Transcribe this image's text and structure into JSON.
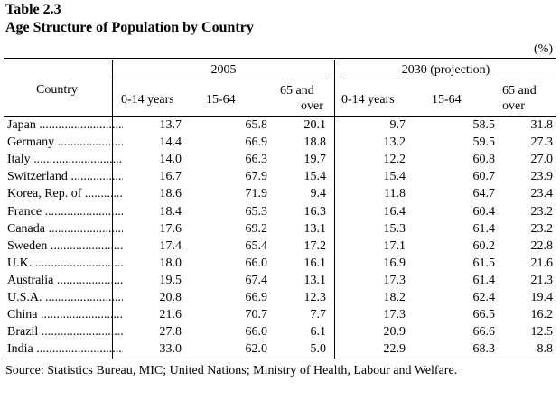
{
  "table": {
    "number": "Table 2.3",
    "title": "Age Structure of Population by Country",
    "unit": "(%)",
    "country_header": "Country",
    "group_2005": "2005",
    "group_2030": "2030 (projection)",
    "col_0_14": "0-14 years",
    "col_15_64": "15-64",
    "col_65_line1": "65 and",
    "col_65_line2": "over",
    "rows": [
      {
        "country": "Japan",
        "v": [
          "13.7",
          "65.8",
          "20.1",
          "9.7",
          "58.5",
          "31.8"
        ]
      },
      {
        "country": "Germany",
        "v": [
          "14.4",
          "66.9",
          "18.8",
          "13.2",
          "59.5",
          "27.3"
        ]
      },
      {
        "country": "Italy",
        "v": [
          "14.0",
          "66.3",
          "19.7",
          "12.2",
          "60.8",
          "27.0"
        ]
      },
      {
        "country": "Switzerland",
        "v": [
          "16.7",
          "67.9",
          "15.4",
          "15.4",
          "60.7",
          "23.9"
        ]
      },
      {
        "country": "Korea, Rep. of",
        "v": [
          "18.6",
          "71.9",
          "9.4",
          "11.8",
          "64.7",
          "23.4"
        ]
      },
      {
        "country": "France",
        "v": [
          "18.4",
          "65.3",
          "16.3",
          "16.4",
          "60.4",
          "23.2"
        ]
      },
      {
        "country": "Canada",
        "v": [
          "17.6",
          "69.2",
          "13.1",
          "15.3",
          "61.4",
          "23.2"
        ]
      },
      {
        "country": "Sweden",
        "v": [
          "17.4",
          "65.4",
          "17.2",
          "17.1",
          "60.2",
          "22.8"
        ]
      },
      {
        "country": "U.K.",
        "v": [
          "18.0",
          "66.0",
          "16.1",
          "16.9",
          "61.5",
          "21.6"
        ]
      },
      {
        "country": "Australia",
        "v": [
          "19.5",
          "67.4",
          "13.1",
          "17.3",
          "61.4",
          "21.3"
        ]
      },
      {
        "country": "U.S.A.",
        "v": [
          "20.8",
          "66.9",
          "12.3",
          "18.2",
          "62.4",
          "19.4"
        ]
      },
      {
        "country": "China",
        "v": [
          "21.6",
          "70.7",
          "7.7",
          "17.3",
          "66.5",
          "16.2"
        ]
      },
      {
        "country": "Brazil",
        "v": [
          "27.8",
          "66.0",
          "6.1",
          "20.9",
          "66.6",
          "12.5"
        ]
      },
      {
        "country": "India",
        "v": [
          "33.0",
          "62.0",
          "5.0",
          "22.9",
          "68.3",
          "8.8"
        ]
      }
    ],
    "source": "Source:  Statistics Bureau, MIC;  United Nations;  Ministry of Health, Labour and Welfare."
  }
}
